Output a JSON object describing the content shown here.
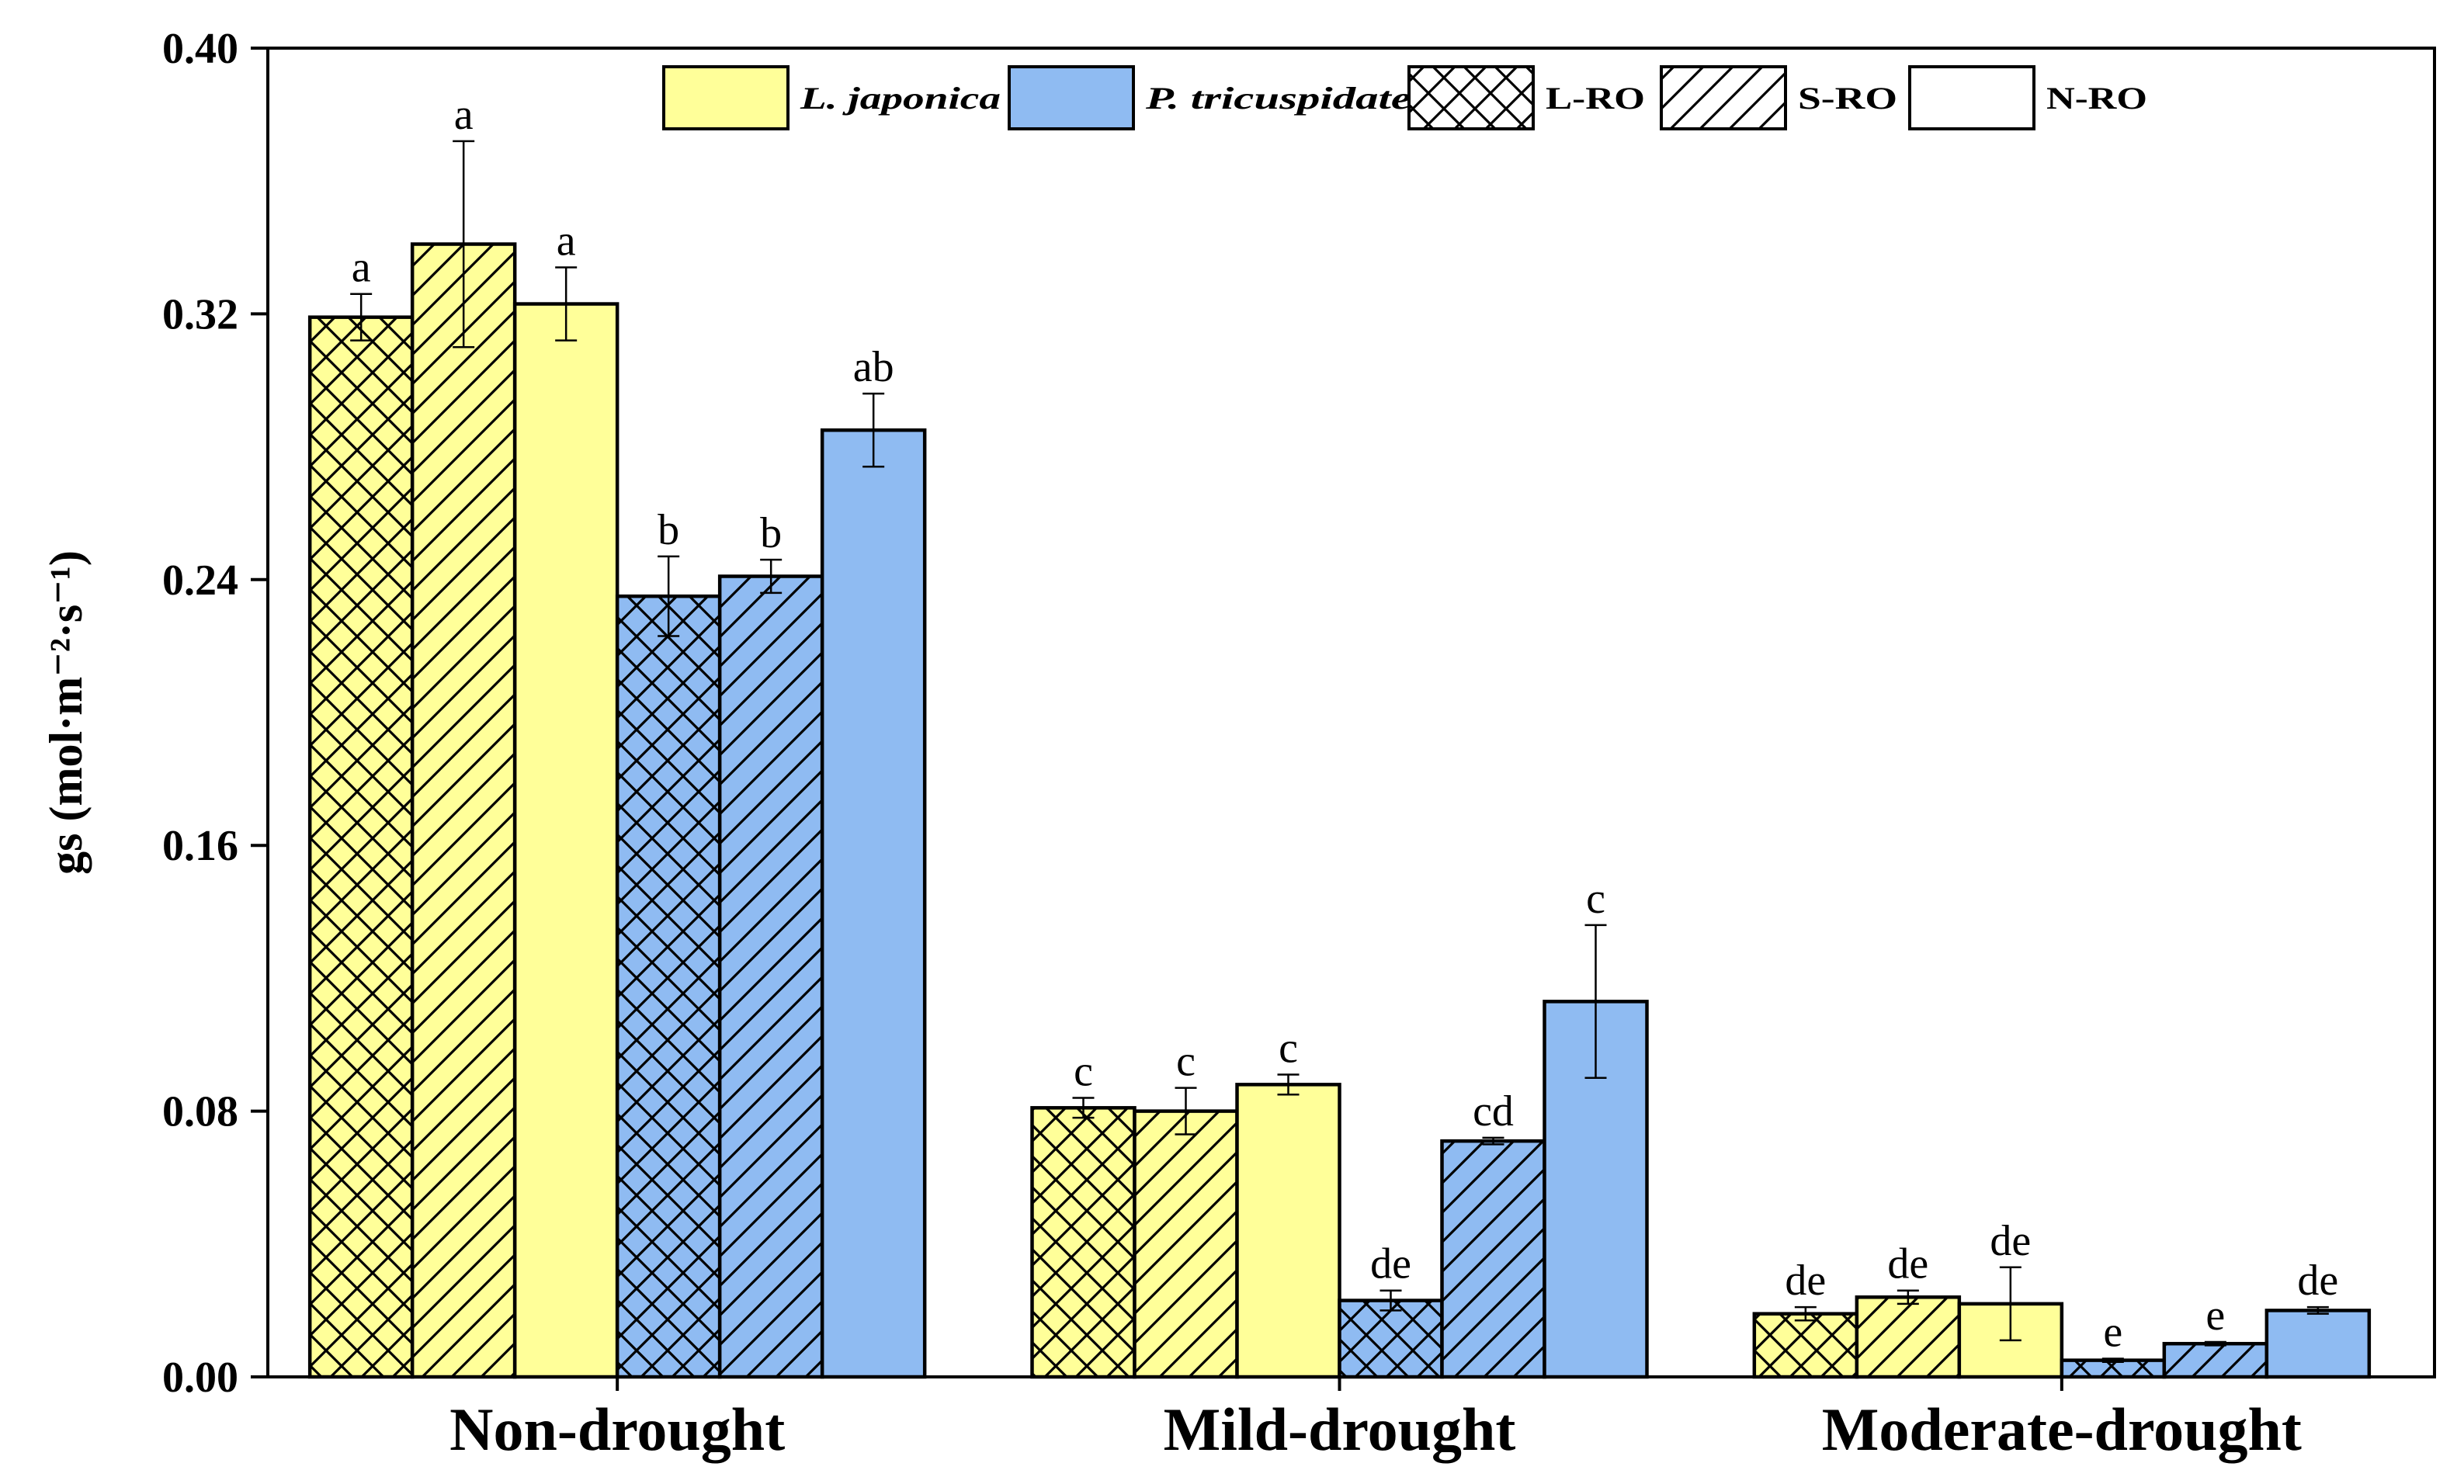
{
  "chart_data": {
    "type": "bar",
    "title": "",
    "xlabel": "",
    "ylabel": "gs (mol·m⁻²·s⁻¹)",
    "ylim": [
      0,
      0.4
    ],
    "yticks": [
      "0.00",
      "0.08",
      "0.16",
      "0.24",
      "0.32",
      "0.40"
    ],
    "ytick_values": [
      0,
      0.08,
      0.16,
      0.24,
      0.32,
      0.4
    ],
    "categories": [
      "Non-drought",
      "Mild-drought",
      "Moderate-drought"
    ],
    "colors": {
      "L. japonica": "#FFFF99",
      "P. tricuspidate": "#8FBBF2",
      "edge": "#000000"
    },
    "legend": [
      {
        "label": "L. japonica",
        "kind": "color",
        "fill": "#FFFF99",
        "pattern": "none",
        "italic": true
      },
      {
        "label": "P. tricuspidate",
        "kind": "color",
        "fill": "#8FBBF2",
        "pattern": "none",
        "italic": true
      },
      {
        "label": "L-RO",
        "kind": "pattern",
        "fill": "#FFFFFF",
        "pattern": "cross",
        "italic": false
      },
      {
        "label": "S-RO",
        "kind": "pattern",
        "fill": "#FFFFFF",
        "pattern": "diag",
        "italic": false
      },
      {
        "label": "N-RO",
        "kind": "pattern",
        "fill": "#FFFFFF",
        "pattern": "none",
        "italic": false
      }
    ],
    "legend_position": "top-right",
    "series": [
      {
        "name": "L. japonica L-RO",
        "species": "L. japonica",
        "pattern": "cross",
        "fill": "#FFFF99",
        "values": [
          0.319,
          0.081,
          0.019
        ],
        "errors": [
          0.007,
          0.003,
          0.002
        ],
        "letters": [
          "a",
          "c",
          "de"
        ]
      },
      {
        "name": "L. japonica S-RO",
        "species": "L. japonica",
        "pattern": "diag",
        "fill": "#FFFF99",
        "values": [
          0.341,
          0.08,
          0.024
        ],
        "errors": [
          0.031,
          0.007,
          0.002
        ],
        "letters": [
          "a",
          "c",
          "de"
        ]
      },
      {
        "name": "L. japonica N-RO",
        "species": "L. japonica",
        "pattern": "none",
        "fill": "#FFFF99",
        "values": [
          0.323,
          0.088,
          0.022
        ],
        "errors": [
          0.011,
          0.003,
          0.011
        ],
        "letters": [
          "a",
          "c",
          "de"
        ]
      },
      {
        "name": "P. tricuspidate L-RO",
        "species": "P. tricuspidate",
        "pattern": "cross",
        "fill": "#8FBBF2",
        "values": [
          0.235,
          0.023,
          0.005
        ],
        "errors": [
          0.012,
          0.003,
          0.0005
        ],
        "letters": [
          "b",
          "de",
          "e"
        ]
      },
      {
        "name": "P. tricuspidate S-RO",
        "species": "P. tricuspidate",
        "pattern": "diag",
        "fill": "#8FBBF2",
        "values": [
          0.241,
          0.071,
          0.01
        ],
        "errors": [
          0.005,
          0.001,
          0.0005
        ],
        "letters": [
          "b",
          "cd",
          "e"
        ]
      },
      {
        "name": "P. tricuspidate N-RO",
        "species": "P. tricuspidate",
        "pattern": "none",
        "fill": "#8FBBF2",
        "values": [
          0.285,
          0.113,
          0.02
        ],
        "errors": [
          0.011,
          0.023,
          0.001
        ],
        "letters": [
          "ab",
          "c",
          "de"
        ]
      }
    ]
  }
}
